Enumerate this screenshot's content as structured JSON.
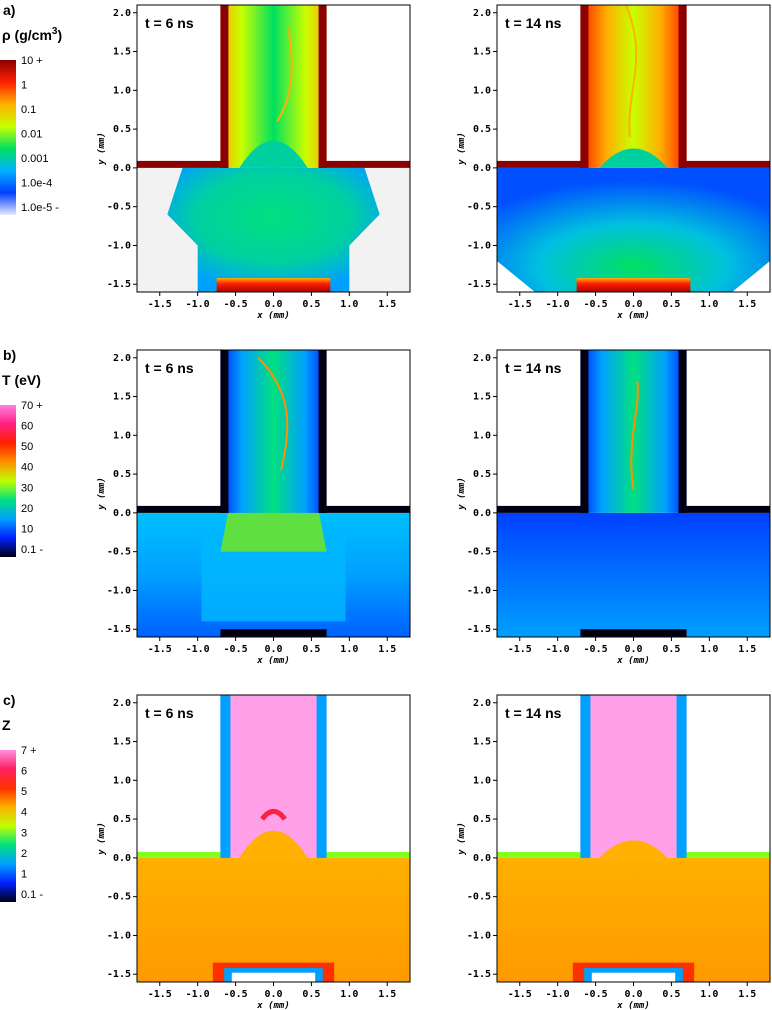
{
  "panels": [
    {
      "label": "a)",
      "quantity_label": "ρ (g/cm",
      "quantity_sup": "3",
      "quantity_close": ")",
      "colorbar_ticks": [
        "10 +",
        "1",
        "0.1",
        "0.01",
        "0.001",
        "1.0e-4",
        "1.0e-5 -"
      ],
      "colorbar_colors": [
        "#8b0000",
        "#ff2000",
        "#ffb000",
        "#c8ff00",
        "#00e060",
        "#00b0ff",
        "#0040ff",
        "#e8e8ff"
      ],
      "plots": [
        {
          "time": "t = 6 ns"
        },
        {
          "time": "t = 14 ns"
        }
      ]
    },
    {
      "label": "b)",
      "quantity_label": "T (eV)",
      "quantity_sup": "",
      "quantity_close": "",
      "colorbar_ticks": [
        "70 +",
        "60",
        "50",
        "40",
        "30",
        "20",
        "10",
        "0.1 -"
      ],
      "colorbar_colors": [
        "#ff80e0",
        "#ff2080",
        "#ff2000",
        "#ff9000",
        "#c0ff00",
        "#00e080",
        "#00a0ff",
        "#0020ff",
        "#000010"
      ],
      "plots": [
        {
          "time": "t = 6 ns"
        },
        {
          "time": "t = 14 ns"
        }
      ]
    },
    {
      "label": "c)",
      "quantity_label": "Z",
      "quantity_sup": "",
      "quantity_close": "",
      "colorbar_ticks": [
        "7 +",
        "6",
        "5",
        "4",
        "3",
        "2",
        "1",
        "0.1 -"
      ],
      "colorbar_colors": [
        "#ff90e0",
        "#ff2060",
        "#ff3000",
        "#ffb000",
        "#c0ff00",
        "#00e080",
        "#00a0ff",
        "#0020ff",
        "#000010"
      ],
      "plots": [
        {
          "time": "t = 6 ns"
        },
        {
          "time": "t = 14 ns"
        }
      ]
    }
  ],
  "axes": {
    "x_ticks": [
      "-1.5",
      "-1.0",
      "-0.5",
      "0.0",
      "0.5",
      "1.0",
      "1.5"
    ],
    "y_ticks": [
      "2.0",
      "1.5",
      "1.0",
      "0.5",
      "0.0",
      "-0.5",
      "-1.0",
      "-1.5"
    ],
    "x_label": "x (mm)",
    "y_label": "y (mm)"
  }
}
